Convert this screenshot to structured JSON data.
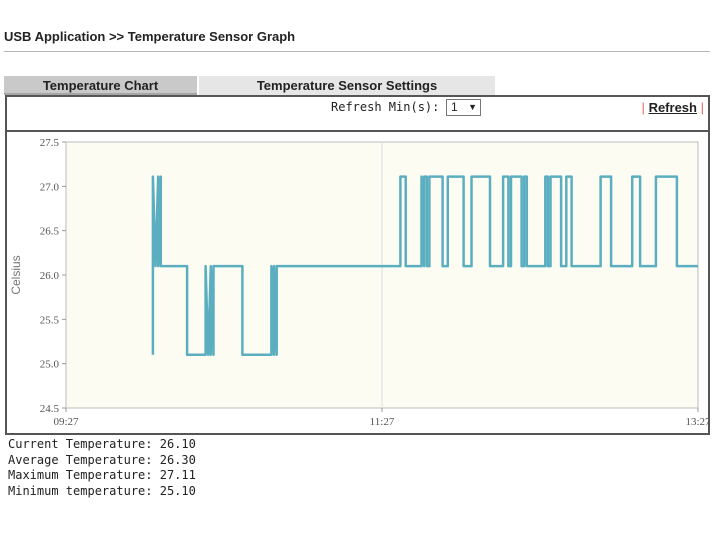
{
  "breadcrumb": "USB Application >> Temperature Sensor Graph",
  "tabs": [
    {
      "label": "Temperature Chart",
      "active": true
    },
    {
      "label": "Temperature Sensor Settings",
      "active": false
    }
  ],
  "toolbar": {
    "refresh_label": "Refresh Min(s):",
    "refresh_value": "1",
    "refresh_link": "Refresh"
  },
  "chart_data": {
    "type": "line",
    "title": "",
    "xlabel": "",
    "ylabel": "Celsius",
    "ylim": [
      24.5,
      27.5
    ],
    "yticks": [
      "24.5",
      "25.0",
      "25.5",
      "26.0",
      "26.5",
      "27.0",
      "27.5"
    ],
    "xlim": [
      "09:27",
      "13:27"
    ],
    "xticks": [
      "09:27",
      "11:27",
      "13:27"
    ],
    "grid": "vertical center line",
    "legend": "none",
    "colors": {
      "line": "#5aaec0",
      "plot_bg": "#fdfcf3",
      "grid": "#dcdcdc"
    },
    "series": [
      {
        "x": [
          "10:00",
          "10:00",
          "10:01",
          "10:02",
          "10:02",
          "10:03",
          "10:03",
          "10:04",
          "10:04",
          "10:13",
          "10:13",
          "10:20",
          "10:20",
          "10:21",
          "10:22",
          "10:22",
          "10:23",
          "10:23",
          "10:23",
          "10:34",
          "10:34",
          "10:45",
          "10:45",
          "10:46",
          "10:46",
          "10:47",
          "10:47",
          "10:53",
          "10:53",
          "11:34",
          "11:34",
          "11:36",
          "11:36",
          "11:42",
          "11:42",
          "11:43",
          "11:43",
          "11:44",
          "11:44",
          "11:45",
          "11:45",
          "11:50",
          "11:50",
          "11:52",
          "11:52",
          "11:58",
          "11:58",
          "12:01",
          "12:01",
          "12:08",
          "12:08",
          "12:13",
          "12:13",
          "12:15",
          "12:15",
          "12:16",
          "12:16",
          "12:20",
          "12:20",
          "12:21",
          "12:21",
          "12:22",
          "12:22",
          "12:29",
          "12:29",
          "12:30",
          "12:30",
          "12:31",
          "12:31",
          "12:35",
          "12:35",
          "12:37",
          "12:37",
          "12:39",
          "12:39",
          "12:50",
          "12:50",
          "12:54",
          "12:54",
          "13:02",
          "13:02",
          "13:05",
          "13:05",
          "13:11",
          "13:11",
          "13:19",
          "13:19",
          "13:27"
        ],
        "y": [
          25.1,
          27.11,
          26.1,
          27.11,
          26.1,
          27.11,
          26.1,
          26.1,
          26.1,
          26.1,
          25.1,
          25.1,
          26.1,
          25.1,
          26.1,
          25.1,
          26.1,
          25.1,
          26.1,
          26.1,
          25.1,
          25.1,
          26.1,
          25.1,
          26.1,
          25.1,
          26.1,
          26.1,
          26.1,
          26.1,
          27.11,
          27.11,
          26.1,
          26.1,
          27.11,
          26.1,
          27.11,
          27.11,
          26.1,
          26.1,
          27.11,
          27.11,
          26.1,
          26.1,
          27.11,
          27.11,
          26.1,
          26.1,
          27.11,
          27.11,
          26.1,
          26.1,
          27.11,
          27.11,
          26.1,
          26.1,
          27.11,
          27.11,
          26.1,
          26.1,
          27.11,
          27.11,
          26.1,
          26.1,
          27.11,
          27.11,
          26.1,
          26.1,
          27.11,
          27.11,
          26.1,
          26.1,
          27.11,
          27.11,
          26.1,
          26.1,
          27.11,
          27.11,
          26.1,
          26.1,
          27.11,
          27.11,
          26.1,
          26.1,
          27.11,
          27.11,
          26.1,
          26.1
        ]
      }
    ]
  },
  "stats": {
    "current": "Current Temperature: 26.10",
    "average": "Average Temperature: 26.30",
    "maximum": "Maximum Temperature: 27.11",
    "minimum": "Minimum temperature: 25.10"
  }
}
